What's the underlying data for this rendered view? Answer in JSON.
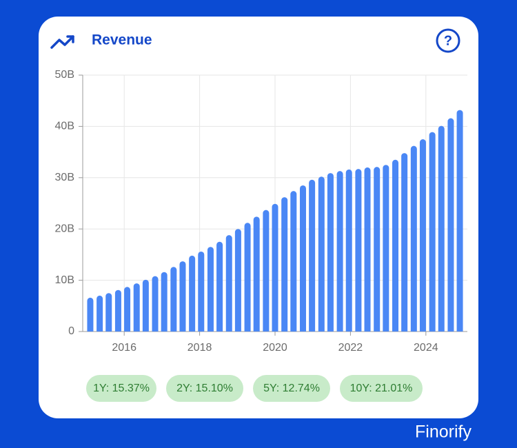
{
  "chart_data": {
    "type": "bar",
    "title": "Revenue",
    "x": [
      2015.1,
      2015.35,
      2015.59,
      2015.84,
      2016.08,
      2016.33,
      2016.57,
      2016.82,
      2017.06,
      2017.31,
      2017.55,
      2017.8,
      2018.04,
      2018.29,
      2018.53,
      2018.78,
      2019.02,
      2019.27,
      2019.51,
      2019.76,
      2020.0,
      2020.25,
      2020.49,
      2020.74,
      2020.98,
      2021.23,
      2021.47,
      2021.72,
      2021.96,
      2022.21,
      2022.45,
      2022.7,
      2022.94,
      2023.19,
      2023.43,
      2023.68,
      2023.92,
      2024.17,
      2024.41,
      2024.66,
      2024.9
    ],
    "values": [
      6.6,
      7.0,
      7.5,
      8.1,
      8.7,
      9.4,
      10.1,
      10.8,
      11.6,
      12.6,
      13.7,
      14.8,
      15.6,
      16.5,
      17.5,
      18.8,
      20.0,
      21.2,
      22.4,
      23.7,
      24.9,
      26.2,
      27.4,
      28.5,
      29.6,
      30.2,
      30.9,
      31.3,
      31.6,
      31.7,
      32.0,
      32.1,
      32.5,
      33.5,
      34.8,
      36.2,
      37.5,
      38.9,
      40.1,
      41.6,
      43.2
    ],
    "color": "#4a87f5",
    "xlim": [
      2014.9,
      2025.1
    ],
    "xticks": [
      2016,
      2018,
      2020,
      2022,
      2024
    ],
    "ylim": [
      0,
      50
    ],
    "yticks": [
      0,
      {
        "value": 10,
        "label": "10B"
      },
      {
        "value": 20,
        "label": "20B"
      },
      {
        "value": 30,
        "label": "30B"
      },
      {
        "value": 40,
        "label": "40B"
      },
      {
        "value": 50,
        "label": "50B"
      }
    ],
    "grid": true,
    "growth": [
      "1Y: 15.37%",
      "2Y: 15.10%",
      "5Y: 12.74%",
      "10Y: 21.01%"
    ]
  },
  "brand": "Finorify"
}
